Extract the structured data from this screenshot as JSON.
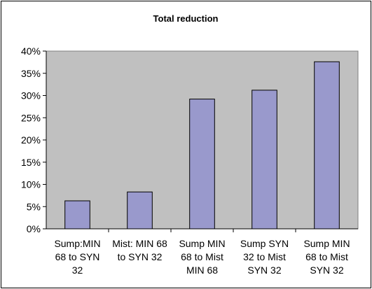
{
  "chart_data": {
    "type": "bar",
    "title": "Total reduction",
    "categories": [
      [
        "Sump:MIN",
        "68 to SYN",
        "32"
      ],
      [
        "Mist: MIN 68",
        "to SYN 32"
      ],
      [
        "Sump MIN",
        "68 to Mist",
        "MIN 68"
      ],
      [
        "Sump SYN",
        "32 to Mist",
        "SYN 32"
      ],
      [
        "Sump MIN",
        "68 to Mist",
        "SYN 32"
      ]
    ],
    "values": [
      6.3,
      8.3,
      29.2,
      31.2,
      37.6
    ],
    "ylim": [
      0,
      40
    ],
    "yticks": [
      0,
      5,
      10,
      15,
      20,
      25,
      30,
      35,
      40
    ],
    "ytick_labels": [
      "0%",
      "5%",
      "10%",
      "15%",
      "20%",
      "25%",
      "30%",
      "35%",
      "40%"
    ],
    "xlabel": "",
    "ylabel": "",
    "grid": false,
    "legend": "none",
    "colors": {
      "bar_fill": "#9999cc",
      "bar_stroke": "#000000",
      "plot_bg": "#c0c0c0",
      "axis": "#000000"
    }
  }
}
